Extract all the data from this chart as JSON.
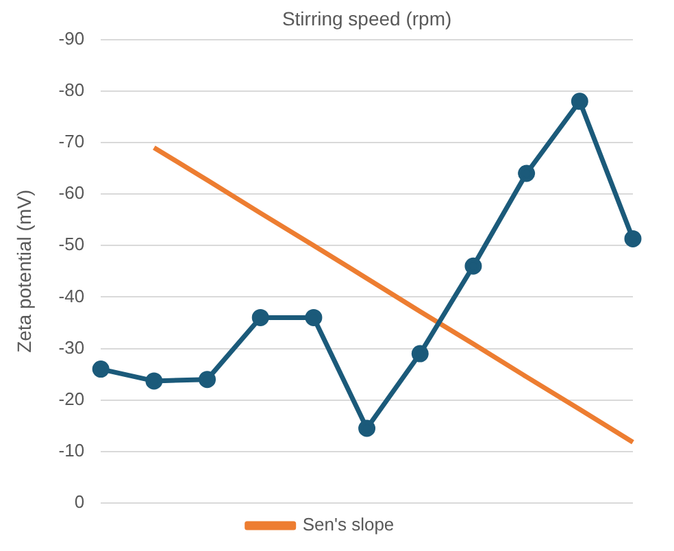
{
  "chart_data": {
    "type": "line",
    "xlabel": "Stirring speed (rpm)",
    "ylabel": "Zeta potential (mV)",
    "categories": [
      null,
      null,
      null,
      null,
      null,
      null,
      null,
      null,
      null,
      null,
      null
    ],
    "ylim": [
      0,
      -90
    ],
    "yticks": [
      -90,
      -80,
      -70,
      -60,
      -50,
      -40,
      -30,
      -20,
      -10,
      0
    ],
    "tick_labels": "y",
    "grid": "y",
    "legend": "bottom",
    "marker": "circle",
    "series": [
      {
        "color": "#1b5a7a",
        "values": [
          -26,
          -23.7,
          -24,
          -36,
          -36,
          -14.5,
          -29,
          -46,
          -64,
          -78,
          -51.3
        ]
      },
      {
        "name": "Sen's slope",
        "type": "line",
        "marker": "none",
        "color": "#ed7d31",
        "values": [
          null,
          -69.0,
          -62.7,
          -56.3,
          -50.0,
          -43.6,
          -37.2,
          -30.9,
          -24.5,
          -18.2,
          -11.8
        ]
      }
    ]
  }
}
